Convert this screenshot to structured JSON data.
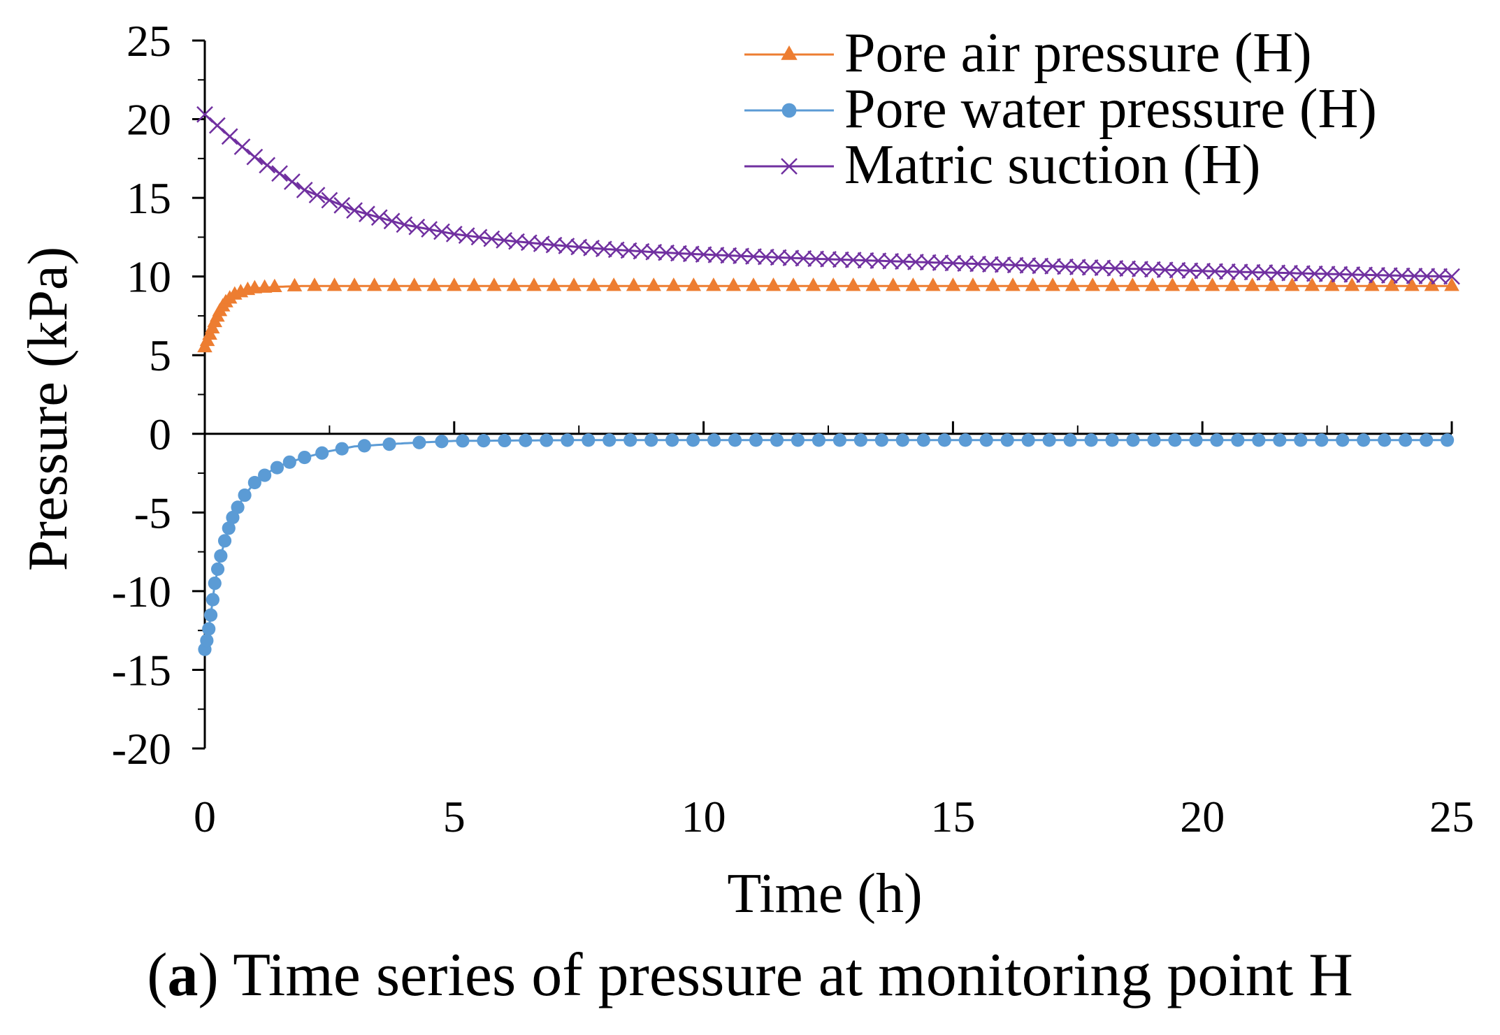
{
  "chart_data": {
    "type": "line",
    "title": "",
    "xlabel": "Time (h)",
    "ylabel": "Pressure (kPa)",
    "xlim": [
      0,
      25
    ],
    "ylim": [
      -20,
      25
    ],
    "xticks": [
      "0",
      "5",
      "10",
      "15",
      "20",
      "25"
    ],
    "yticks": [
      "25",
      "20",
      "15",
      "10",
      "5",
      "0",
      "-5",
      "-10",
      "-15",
      "-20"
    ],
    "legend_position": "top-right",
    "series": [
      {
        "name": "Pore air pressure (H)",
        "color": "#ED7D31",
        "marker": "triangle",
        "x": [
          0,
          0.1,
          0.2,
          0.3,
          0.4,
          0.5,
          0.6,
          0.8,
          1.0,
          1.5,
          2,
          3,
          4,
          5,
          7.5,
          10,
          12.5,
          15,
          17.5,
          20,
          22.5,
          25
        ],
        "values": [
          5.5,
          6.3,
          7.1,
          7.8,
          8.3,
          8.6,
          8.85,
          9.1,
          9.25,
          9.35,
          9.4,
          9.4,
          9.4,
          9.4,
          9.4,
          9.4,
          9.4,
          9.4,
          9.4,
          9.4,
          9.4,
          9.4
        ]
      },
      {
        "name": "Pore water pressure (H)",
        "color": "#5B9BD5",
        "marker": "circle",
        "x": [
          0,
          0.05,
          0.1,
          0.15,
          0.2,
          0.3,
          0.4,
          0.5,
          0.6,
          0.8,
          1.0,
          1.3,
          1.6,
          2.0,
          2.5,
          3.0,
          4.0,
          5.0,
          7.5,
          10,
          12.5,
          15,
          17.5,
          20,
          22.5,
          25
        ],
        "values": [
          -13.7,
          -13.0,
          -12.0,
          -10.8,
          -9.5,
          -8.0,
          -6.8,
          -5.8,
          -5.0,
          -3.9,
          -3.1,
          -2.4,
          -1.9,
          -1.5,
          -1.1,
          -0.8,
          -0.6,
          -0.45,
          -0.4,
          -0.4,
          -0.4,
          -0.4,
          -0.4,
          -0.4,
          -0.4,
          -0.4
        ]
      },
      {
        "name": "Matric suction (H)",
        "color": "#7030A0",
        "marker": "x",
        "x": [
          0,
          0.5,
          1,
          2,
          3,
          4,
          5,
          6,
          7,
          8,
          9,
          10,
          12,
          14,
          16,
          18,
          20,
          22,
          24,
          25
        ],
        "values": [
          20.3,
          18.9,
          17.6,
          15.5,
          14.2,
          13.3,
          12.7,
          12.3,
          12.0,
          11.75,
          11.55,
          11.4,
          11.15,
          10.95,
          10.75,
          10.55,
          10.35,
          10.2,
          10.05,
          10.0
        ]
      }
    ]
  },
  "caption": {
    "label": "a",
    "text": "Time series of pressure at monitoring point H"
  }
}
